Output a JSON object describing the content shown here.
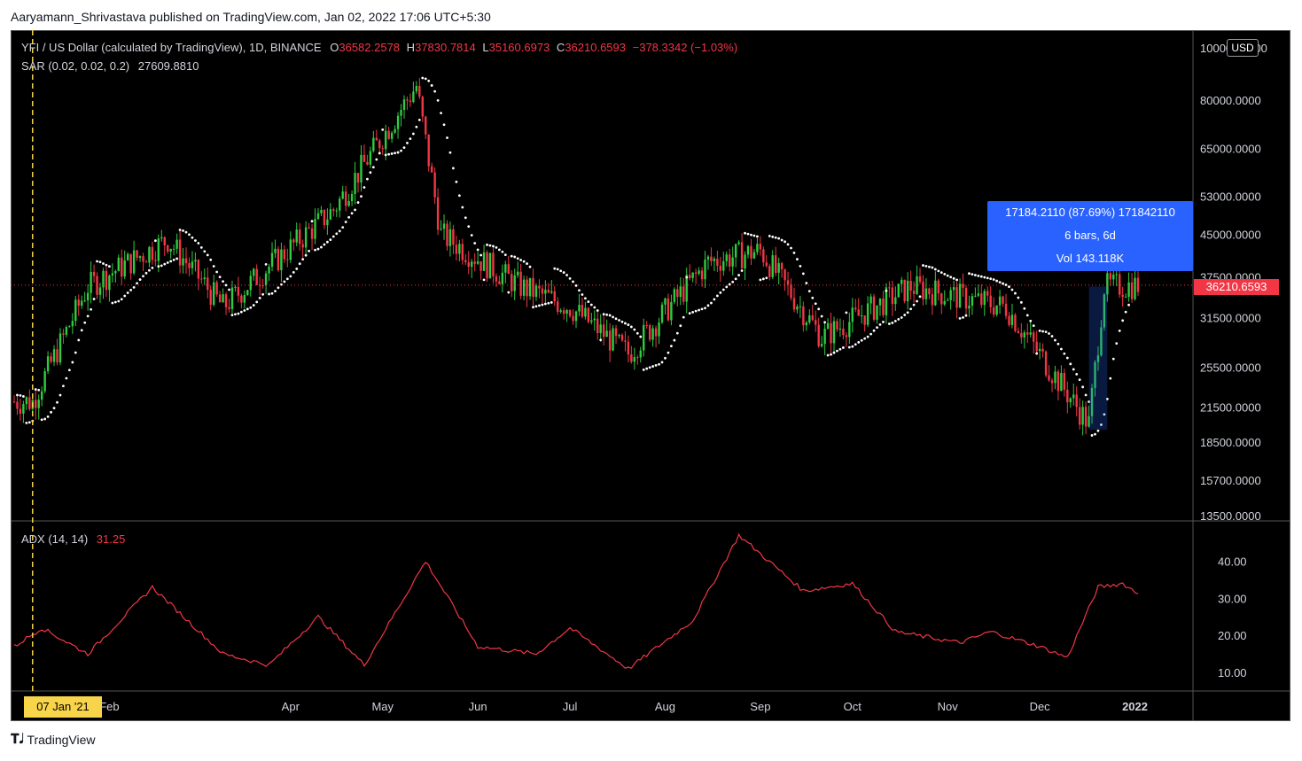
{
  "publisher_line": "Aaryamann_Shrivastava published on TradingView.com, Jan 02, 2022 17:06 UTC+5:30",
  "symbol": {
    "title": "YFI / US Dollar (calculated by TradingView), 1D, BINANCE",
    "o_label": "O",
    "o_value": "36582.2578",
    "h_label": "H",
    "h_value": "37830.7814",
    "l_label": "L",
    "l_value": "35160.6973",
    "c_label": "C",
    "c_value": "36210.6593",
    "change": "−378.3342 (−1.03%)"
  },
  "sar": {
    "label": "SAR (0.02, 0.02, 0.2)",
    "value": "27609.8810"
  },
  "adx": {
    "label": "ADX (14, 14)",
    "value": "31.25"
  },
  "currency_button": "USD",
  "last_price_label": "36210.6593",
  "price_axis_labels": [
    "100000.0000",
    "80000.0000",
    "65000.0000",
    "53000.0000",
    "45000.0000",
    "37500.0000",
    "31500.0000",
    "25500.0000",
    "21500.0000",
    "18500.0000",
    "15700.0000",
    "13500.0000"
  ],
  "adx_axis_labels": [
    "40.00",
    "30.00",
    "20.00",
    "10.00"
  ],
  "time_axis_labels": [
    "Feb",
    "Apr",
    "May",
    "Jun",
    "Jul",
    "Aug",
    "Sep",
    "Oct",
    "Nov",
    "Dec",
    "2022"
  ],
  "cursor_date": "07 Jan '21",
  "measure_tool": {
    "line1": "17184.2110 (87.69%) 171842110",
    "line2": "6 bars, 6d",
    "line3": "Vol 143.118K"
  },
  "footer_brand": "TradingView",
  "colors": {
    "up": "#26a69a",
    "up_bright": "#2ecc40",
    "down": "#f23645",
    "sar": "#ffffff",
    "adx": "#f23645",
    "measure": "#2962ff",
    "cursor": "#f7d44a"
  },
  "chart_data": [
    {
      "type": "candlestick",
      "title": "YFI / US Dollar (calculated by TradingView), 1D, BINANCE",
      "scale": "log",
      "ylim": [
        13500,
        100000
      ],
      "x_range": [
        "2021-01-01",
        "2022-01-02"
      ],
      "key_points": [
        {
          "date": "2021-01-07",
          "close": 22000
        },
        {
          "date": "2021-01-25",
          "close": 36000
        },
        {
          "date": "2021-02-20",
          "close": 44000
        },
        {
          "date": "2021-03-10",
          "close": 33000
        },
        {
          "date": "2021-04-15",
          "close": 50000
        },
        {
          "date": "2021-05-12",
          "close": 85000
        },
        {
          "date": "2021-05-20",
          "close": 45000
        },
        {
          "date": "2021-06-15",
          "close": 36000
        },
        {
          "date": "2021-07-01",
          "close": 33000
        },
        {
          "date": "2021-07-20",
          "close": 27000
        },
        {
          "date": "2021-08-15",
          "close": 40000
        },
        {
          "date": "2021-09-01",
          "close": 42000
        },
        {
          "date": "2021-09-21",
          "close": 29000
        },
        {
          "date": "2021-10-20",
          "close": 36000
        },
        {
          "date": "2021-11-20",
          "close": 33000
        },
        {
          "date": "2021-12-17",
          "close": 20000
        },
        {
          "date": "2021-12-22",
          "close": 36000
        },
        {
          "date": "2022-01-02",
          "close": 36210.6593
        }
      ],
      "last": {
        "open": 36582.2578,
        "high": 37830.7814,
        "low": 35160.6973,
        "close": 36210.6593
      }
    },
    {
      "type": "line",
      "title": "ADX (14, 14)",
      "ylim": [
        5,
        48
      ],
      "key_points": [
        {
          "date": "2021-01-01",
          "value": 17
        },
        {
          "date": "2021-01-10",
          "value": 22
        },
        {
          "date": "2021-01-25",
          "value": 15
        },
        {
          "date": "2021-02-15",
          "value": 33
        },
        {
          "date": "2021-03-10",
          "value": 15
        },
        {
          "date": "2021-03-25",
          "value": 12
        },
        {
          "date": "2021-04-10",
          "value": 25
        },
        {
          "date": "2021-04-25",
          "value": 12
        },
        {
          "date": "2021-05-15",
          "value": 40
        },
        {
          "date": "2021-06-01",
          "value": 17
        },
        {
          "date": "2021-06-20",
          "value": 15
        },
        {
          "date": "2021-07-01",
          "value": 22
        },
        {
          "date": "2021-07-20",
          "value": 11
        },
        {
          "date": "2021-08-10",
          "value": 24
        },
        {
          "date": "2021-08-25",
          "value": 47
        },
        {
          "date": "2021-09-15",
          "value": 32
        },
        {
          "date": "2021-10-01",
          "value": 34
        },
        {
          "date": "2021-10-15",
          "value": 21
        },
        {
          "date": "2021-11-05",
          "value": 18
        },
        {
          "date": "2021-11-15",
          "value": 21
        },
        {
          "date": "2021-12-01",
          "value": 17
        },
        {
          "date": "2021-12-10",
          "value": 14
        },
        {
          "date": "2021-12-20",
          "value": 33
        },
        {
          "date": "2021-12-28",
          "value": 34
        },
        {
          "date": "2022-01-02",
          "value": 31.25
        }
      ]
    }
  ]
}
